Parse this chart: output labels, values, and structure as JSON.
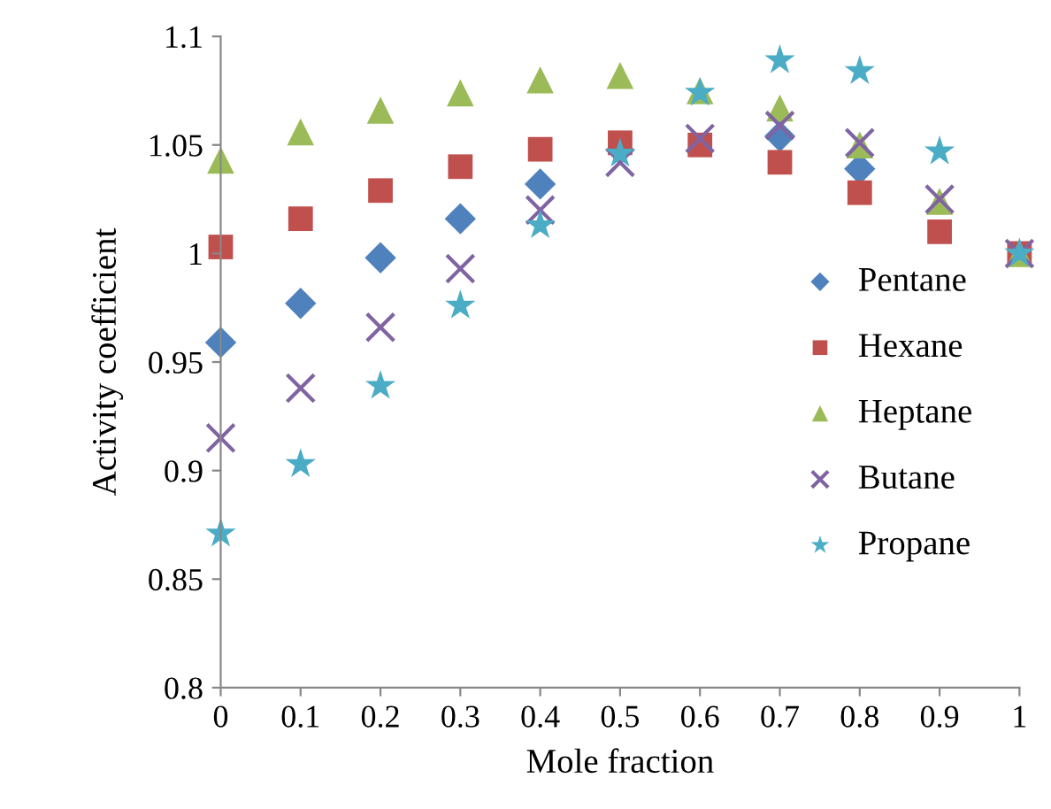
{
  "chart_data": {
    "type": "scatter",
    "xlabel": "Mole fraction",
    "ylabel": "Activity coefficient",
    "x": [
      0,
      0.1,
      0.2,
      0.3,
      0.4,
      0.5,
      0.6,
      0.7,
      0.8,
      0.9,
      1
    ],
    "series": [
      {
        "name": "Pentane",
        "color": "#4f81bd",
        "marker": "diamond",
        "values": [
          0.959,
          0.977,
          0.998,
          1.016,
          1.032,
          null,
          null,
          1.054,
          1.039,
          null,
          null
        ]
      },
      {
        "name": "Hexane",
        "color": "#c0504d",
        "marker": "square",
        "values": [
          1.003,
          1.016,
          1.029,
          1.04,
          1.048,
          1.051,
          1.05,
          1.042,
          1.028,
          1.01,
          1.0
        ]
      },
      {
        "name": "Heptane",
        "color": "#9bbb59",
        "marker": "triangle",
        "values": [
          1.043,
          1.056,
          1.066,
          1.074,
          1.08,
          1.082,
          1.075,
          1.067,
          1.05,
          1.024,
          1.0
        ]
      },
      {
        "name": "Butane",
        "color": "#8064a2",
        "marker": "cross",
        "values": [
          0.915,
          0.938,
          0.966,
          0.993,
          1.02,
          1.042,
          1.053,
          1.059,
          1.051,
          1.025,
          1.0
        ]
      },
      {
        "name": "Propane",
        "color": "#4bacc6",
        "marker": "star",
        "values": [
          0.871,
          0.903,
          0.939,
          0.976,
          1.013,
          1.046,
          1.074,
          1.089,
          1.084,
          1.047,
          1.0
        ]
      }
    ],
    "xlim": [
      0,
      1
    ],
    "xticks": [
      0,
      0.1,
      0.2,
      0.3,
      0.4,
      0.5,
      0.6,
      0.7,
      0.8,
      0.9,
      1
    ],
    "ylim": [
      0.8,
      1.1
    ],
    "yticks": [
      0.8,
      0.85,
      0.9,
      0.95,
      1,
      1.05,
      1.1
    ],
    "grid": false,
    "legend": "center right"
  }
}
